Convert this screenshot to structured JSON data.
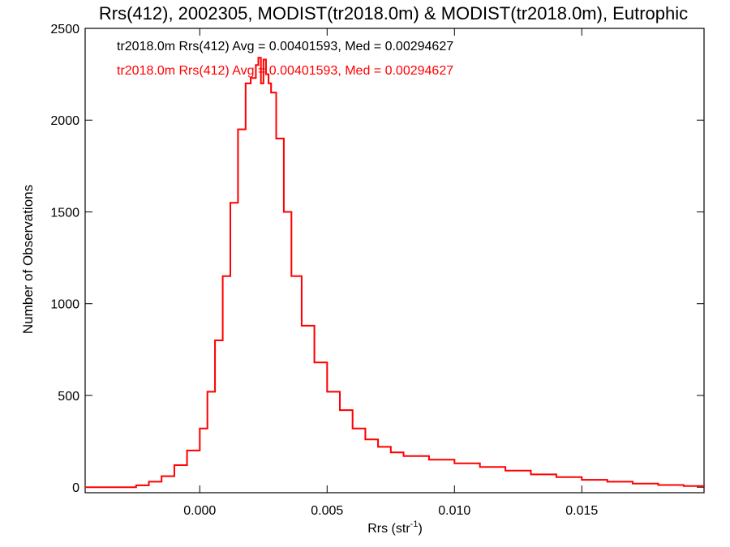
{
  "chart_data": {
    "type": "line",
    "title": "Rrs(412), 2002305, MODIST(tr2018.0m) & MODIST(tr2018.0m), Eutrophic",
    "xlabel": "Rrs (str",
    "xlabel_sup": "-1",
    "xlabel_end": ")",
    "ylabel": "Number of Observations",
    "xlim": [
      -0.0045,
      0.0198
    ],
    "ylim": [
      -30,
      2500
    ],
    "xticks": [
      0.0,
      0.005,
      0.01,
      0.015
    ],
    "xtick_labels": [
      "0.000",
      "0.005",
      "0.010",
      "0.015"
    ],
    "yticks": [
      0,
      500,
      1000,
      1500,
      2000,
      2500
    ],
    "ytick_labels": [
      "0",
      "500",
      "1000",
      "1500",
      "2000",
      "2500"
    ],
    "grid": false,
    "legend_placement": "top-left",
    "series": [
      {
        "name": "tr2018.0m Rrs(412) Avg = 0.00401593, Med = 0.00294627",
        "color": "#000000",
        "x": [
          -0.0045,
          -0.003,
          -0.0025,
          -0.002,
          -0.0015,
          -0.001,
          -0.0005,
          0.0,
          0.0003,
          0.0006,
          0.0009,
          0.0012,
          0.0015,
          0.0018,
          0.002,
          0.0022,
          0.0023,
          0.0024,
          0.0025,
          0.0026,
          0.0027,
          0.0028,
          0.003,
          0.0033,
          0.0036,
          0.004,
          0.0045,
          0.005,
          0.0055,
          0.006,
          0.0065,
          0.007,
          0.0075,
          0.008,
          0.009,
          0.01,
          0.011,
          0.012,
          0.013,
          0.014,
          0.015,
          0.016,
          0.017,
          0.018,
          0.019,
          0.0198
        ],
        "values": [
          0,
          0,
          10,
          30,
          60,
          120,
          200,
          320,
          520,
          800,
          1150,
          1550,
          1950,
          2200,
          2230,
          2300,
          2340,
          2200,
          2330,
          2250,
          2200,
          2150,
          1900,
          1500,
          1150,
          880,
          680,
          520,
          420,
          320,
          260,
          220,
          190,
          170,
          150,
          130,
          110,
          90,
          70,
          55,
          40,
          30,
          20,
          12,
          6,
          3
        ]
      },
      {
        "name": "tr2018.0m Rrs(412) Avg = 0.00401593, Med = 0.00294627",
        "color": "#ff0000",
        "x": [
          -0.0045,
          -0.003,
          -0.0025,
          -0.002,
          -0.0015,
          -0.001,
          -0.0005,
          0.0,
          0.0003,
          0.0006,
          0.0009,
          0.0012,
          0.0015,
          0.0018,
          0.002,
          0.0022,
          0.0023,
          0.0024,
          0.0025,
          0.0026,
          0.0027,
          0.0028,
          0.003,
          0.0033,
          0.0036,
          0.004,
          0.0045,
          0.005,
          0.0055,
          0.006,
          0.0065,
          0.007,
          0.0075,
          0.008,
          0.009,
          0.01,
          0.011,
          0.012,
          0.013,
          0.014,
          0.015,
          0.016,
          0.017,
          0.018,
          0.019,
          0.0198
        ],
        "values": [
          0,
          0,
          10,
          30,
          60,
          120,
          200,
          320,
          520,
          800,
          1150,
          1550,
          1950,
          2200,
          2230,
          2300,
          2340,
          2200,
          2330,
          2250,
          2200,
          2150,
          1900,
          1500,
          1150,
          880,
          680,
          520,
          420,
          320,
          260,
          220,
          190,
          170,
          150,
          130,
          110,
          90,
          70,
          55,
          40,
          30,
          20,
          12,
          6,
          3
        ]
      }
    ]
  }
}
